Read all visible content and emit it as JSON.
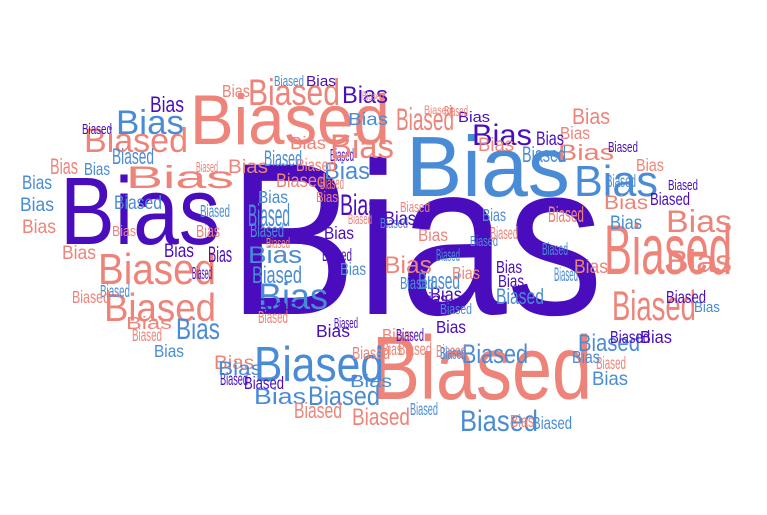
{
  "word_cloud": {
    "colors": {
      "purple": "#4a0dbd",
      "blue": "#4a8bd6",
      "salmon": "#ee8479"
    },
    "words": [
      "Bias",
      "Biased",
      "Bias",
      "Biased",
      "Bias",
      "Biased",
      "Bias",
      "Biased",
      "Bias",
      "Biased",
      "Bias",
      "Biased",
      "Bias",
      "Biased",
      "Bias",
      "Biased",
      "Bias",
      "Biased",
      "Bias",
      "Biased",
      "Bias",
      "Biased",
      "Bias",
      "Biased",
      "Bias",
      "Biased",
      "Bias",
      "Biased",
      "Bias",
      "Biased",
      "Bias",
      "Biased",
      "Bias",
      "Biased",
      "Bias",
      "Biased",
      "Bias",
      "Biased",
      "Bias",
      "Biased",
      "Bias",
      "Biased",
      "Bias",
      "Biased",
      "Bias",
      "Biased",
      "Bias",
      "Biased",
      "Bias",
      "Biased",
      "Bias",
      "Biased",
      "Bias",
      "Biased",
      "Bias",
      "Biased",
      "Bias",
      "Biased",
      "Bias",
      "Biased",
      "Bias",
      "Biased",
      "Bias",
      "Biased",
      "Bias",
      "Biased",
      "Bias",
      "Biased",
      "Bias",
      "Biased",
      "Bias",
      "Biased",
      "Bias",
      "Biased",
      "Bias",
      "Biased",
      "Bias",
      "Biased",
      "Bias",
      "Biased",
      "Bias",
      "Biased",
      "Bias",
      "Biased",
      "Bias",
      "Biased",
      "Bias",
      "Biased",
      "Bias",
      "Biased",
      "Bias",
      "Biased",
      "Bias",
      "Biased",
      "Bias",
      "Biased",
      "Bias",
      "Biased",
      "Bias",
      "Biased",
      "Bias",
      "Biased",
      "Bias",
      "Biased",
      "Bias",
      "Biased",
      "Bias",
      "Biased",
      "Bias",
      "Biased",
      "Bias",
      "Biased",
      "Bias",
      "Biased",
      "Bias",
      "Biased",
      "Bias",
      "Biased",
      "Bias",
      "Biased",
      "Bias",
      "Biased",
      "Bias",
      "Biased",
      "Bias",
      "Biased",
      "Bias",
      "Biased",
      "Bias",
      "Biased",
      "Bias",
      "Biased",
      "Bias",
      "Biased",
      "Bias",
      "Biased",
      "Bias",
      "Biased",
      "Bias",
      "Biased",
      "Bias",
      "Biased",
      "Bias",
      "Biased",
      "Bias",
      "Biased",
      "Bias",
      "Biased",
      "Bias",
      "Biased",
      "Bias",
      "Biased"
    ]
  }
}
